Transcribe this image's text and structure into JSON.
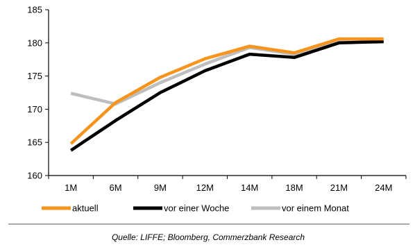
{
  "chart_data": {
    "type": "line",
    "categories": [
      "1M",
      "6M",
      "9M",
      "12M",
      "14M",
      "18M",
      "21M",
      "24M"
    ],
    "ylim": [
      160,
      185
    ],
    "yticks": [
      160,
      165,
      170,
      175,
      180,
      185
    ],
    "grid": false,
    "legend_position": "bottom",
    "series": [
      {
        "name": "aktuell",
        "color": "#F7941D",
        "values": [
          164.8,
          171.0,
          174.8,
          177.6,
          179.5,
          178.5,
          180.6,
          180.6
        ]
      },
      {
        "name": "vor einer Woche",
        "color": "#000000",
        "values": [
          163.8,
          168.3,
          172.5,
          175.8,
          178.3,
          177.8,
          180.0,
          180.2
        ]
      },
      {
        "name": "vor einem Monat",
        "color": "#BEBEBE",
        "values": [
          172.4,
          170.8,
          174.0,
          176.8,
          179.3,
          178.3,
          180.1,
          180.1
        ]
      }
    ],
    "source": "Quelle: LIFFE; Bloomberg, Commerzbank Research"
  }
}
